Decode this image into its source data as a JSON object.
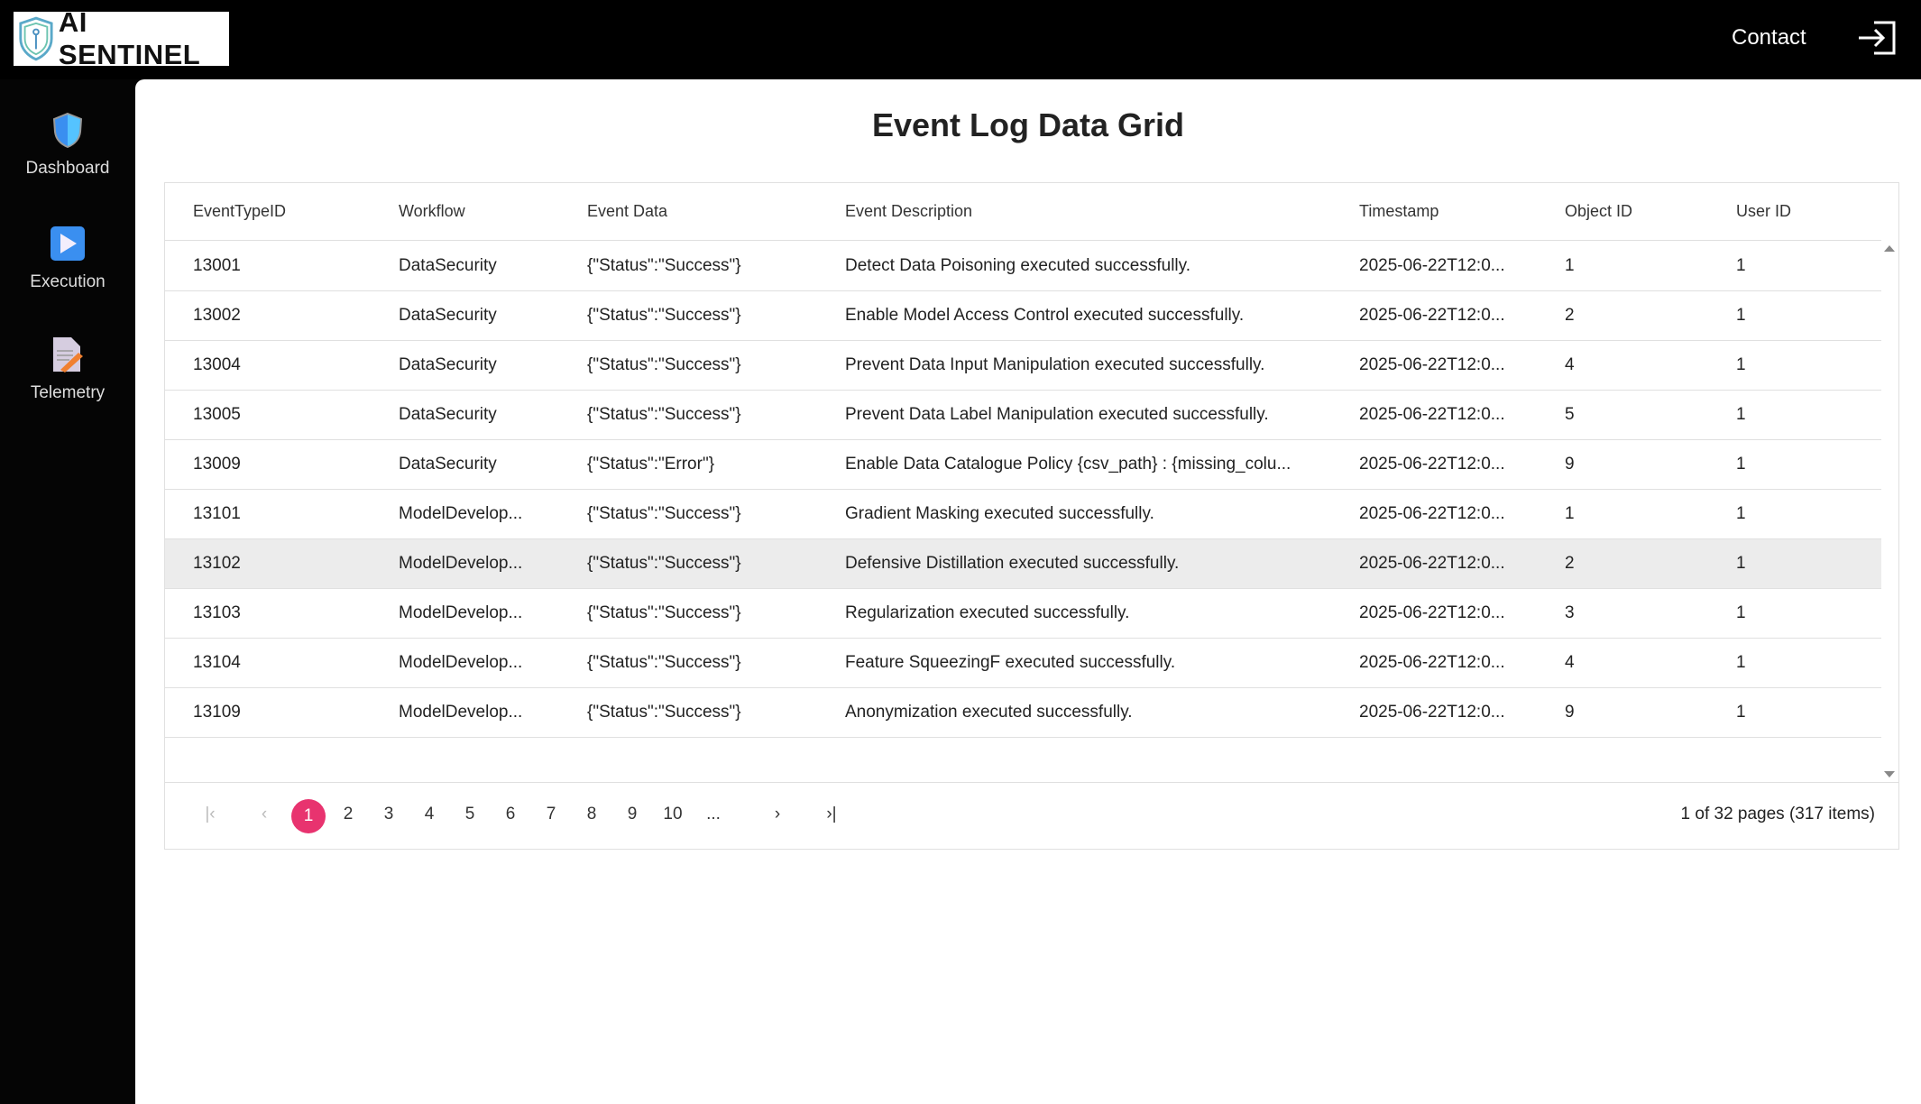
{
  "app": {
    "logo_text": "AI SENTINEL",
    "contact": "Contact"
  },
  "sidebar": {
    "items": [
      {
        "label": "Dashboard",
        "icon": "shield-icon"
      },
      {
        "label": "Execution",
        "icon": "play-icon"
      },
      {
        "label": "Telemetry",
        "icon": "document-edit-icon"
      }
    ]
  },
  "page": {
    "title": "Event Log Data Grid"
  },
  "grid": {
    "columns": [
      "EventTypeID",
      "Workflow",
      "Event Data",
      "Event Description",
      "Timestamp",
      "Object ID",
      "User ID"
    ],
    "rows": [
      [
        "13001",
        "DataSecurity",
        "{\"Status\":\"Success\"}",
        "Detect Data Poisoning executed successfully.",
        "2025-06-22T12:0...",
        "1",
        "1"
      ],
      [
        "13002",
        "DataSecurity",
        "{\"Status\":\"Success\"}",
        "Enable Model Access Control executed successfully.",
        "2025-06-22T12:0...",
        "2",
        "1"
      ],
      [
        "13004",
        "DataSecurity",
        "{\"Status\":\"Success\"}",
        "Prevent Data Input Manipulation executed successfully.",
        "2025-06-22T12:0...",
        "4",
        "1"
      ],
      [
        "13005",
        "DataSecurity",
        "{\"Status\":\"Success\"}",
        "Prevent Data Label Manipulation executed successfully.",
        "2025-06-22T12:0...",
        "5",
        "1"
      ],
      [
        "13009",
        "DataSecurity",
        "{\"Status\":\"Error\"}",
        "Enable Data Catalogue Policy {csv_path} : {missing_colu...",
        "2025-06-22T12:0...",
        "9",
        "1"
      ],
      [
        "13101",
        "ModelDevelop...",
        "{\"Status\":\"Success\"}",
        "Gradient Masking executed successfully.",
        "2025-06-22T12:0...",
        "1",
        "1"
      ],
      [
        "13102",
        "ModelDevelop...",
        "{\"Status\":\"Success\"}",
        "Defensive Distillation executed successfully.",
        "2025-06-22T12:0...",
        "2",
        "1"
      ],
      [
        "13103",
        "ModelDevelop...",
        "{\"Status\":\"Success\"}",
        "Regularization executed successfully.",
        "2025-06-22T12:0...",
        "3",
        "1"
      ],
      [
        "13104",
        "ModelDevelop...",
        "{\"Status\":\"Success\"}",
        "Feature SqueezingF executed successfully.",
        "2025-06-22T12:0...",
        "4",
        "1"
      ],
      [
        "13109",
        "ModelDevelop...",
        "{\"Status\":\"Success\"}",
        "Anonymization executed successfully.",
        "2025-06-22T12:0...",
        "9",
        "1"
      ]
    ],
    "selected_row": 6
  },
  "pager": {
    "pages": [
      "1",
      "2",
      "3",
      "4",
      "5",
      "6",
      "7",
      "8",
      "9",
      "10",
      "..."
    ],
    "current": "1",
    "info": "1 of 32 pages (317 items)",
    "accent": "#e8336f"
  }
}
